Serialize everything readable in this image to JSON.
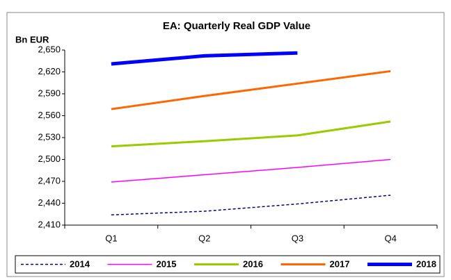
{
  "chart_data": {
    "type": "line",
    "title": "EA: Quarterly Real GDP Value",
    "y_label": "Bn EUR",
    "categories": [
      "Q1",
      "Q2",
      "Q3",
      "Q4"
    ],
    "series": [
      {
        "name": "2014",
        "color": "#000080",
        "line_style": "dashed",
        "linewidth": 1.5,
        "values": [
          2424,
          2429,
          2439,
          2451
        ]
      },
      {
        "name": "2015",
        "color": "#ff00ff",
        "line_style": "solid",
        "linewidth": 1.5,
        "values": [
          2469,
          2479,
          2489,
          2500
        ]
      },
      {
        "name": "2016",
        "color": "#99cc00",
        "line_style": "solid",
        "linewidth": 3,
        "values": [
          2518,
          2525,
          2533,
          2552
        ]
      },
      {
        "name": "2017",
        "color": "#ff6600",
        "line_style": "solid",
        "linewidth": 3,
        "values": [
          2569,
          2587,
          2604,
          2621
        ]
      },
      {
        "name": "2018",
        "color": "#0000ff",
        "line_style": "solid",
        "linewidth": 5,
        "values": [
          2631,
          2642,
          2646,
          null
        ]
      }
    ],
    "ylim": [
      2410,
      2650
    ],
    "yticks": [
      {
        "value": 2410,
        "label": "2,410"
      },
      {
        "value": 2440,
        "label": "2,440"
      },
      {
        "value": 2470,
        "label": "2,470"
      },
      {
        "value": 2500,
        "label": "2,500"
      },
      {
        "value": 2530,
        "label": "2,530"
      },
      {
        "value": 2560,
        "label": "2,560"
      },
      {
        "value": 2590,
        "label": "2,590"
      },
      {
        "value": 2620,
        "label": "2,620"
      },
      {
        "value": 2650,
        "label": "2,650"
      }
    ],
    "grid": false,
    "legend": "bottom"
  }
}
